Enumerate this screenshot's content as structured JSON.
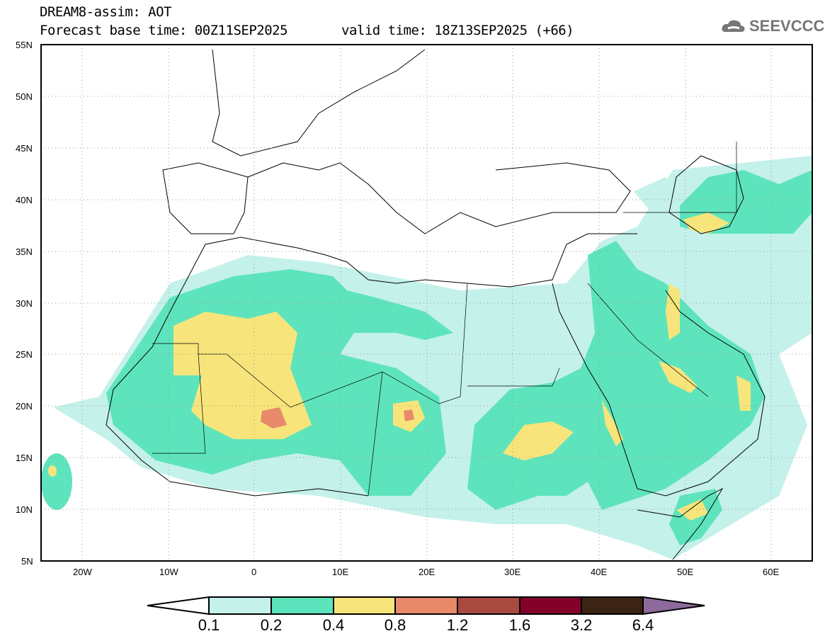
{
  "header": {
    "title": "DREAM8-assim: AOT",
    "base_time": "Forecast base time: 00Z11SEP2025",
    "valid_time": "valid time: 18Z13SEP2025 (+66)"
  },
  "logo": {
    "text": "SEEVCCC"
  },
  "axes": {
    "lat_labels": [
      "55N",
      "50N",
      "45N",
      "40N",
      "35N",
      "30N",
      "25N",
      "20N",
      "15N",
      "10N",
      "5N"
    ],
    "lon_labels": [
      "20W",
      "10W",
      "0",
      "10E",
      "20E",
      "30E",
      "40E",
      "50E",
      "60E"
    ]
  },
  "colorbar": {
    "labels": [
      "0.1",
      "0.2",
      "0.4",
      "0.8",
      "1.2",
      "1.6",
      "3.2",
      "6.4"
    ],
    "colors": [
      "#ffffff",
      "#c4f1ea",
      "#5ee4bc",
      "#f7e57b",
      "#e8896a",
      "#a94a40",
      "#83002b",
      "#3b2414",
      "#8e6a9c"
    ]
  }
}
